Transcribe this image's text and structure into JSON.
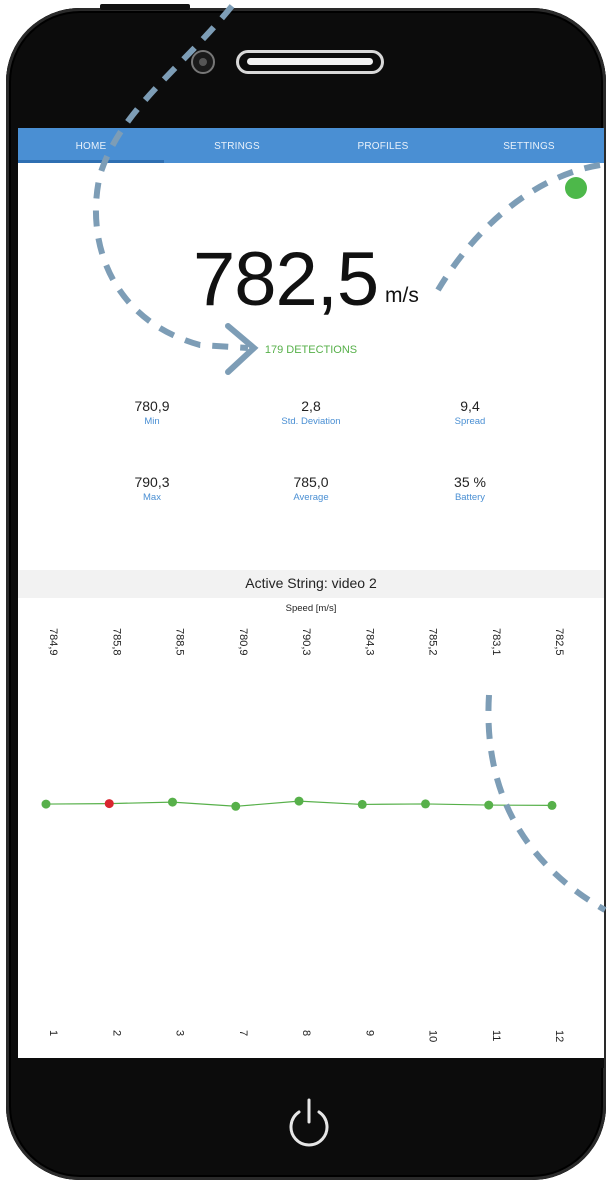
{
  "nav": {
    "tabs": [
      {
        "label": "HOME",
        "active": true
      },
      {
        "label": "STRINGS",
        "active": false
      },
      {
        "label": "PROFILES",
        "active": false
      },
      {
        "label": "SETTINGS",
        "active": false
      }
    ]
  },
  "main": {
    "speed_value": "782,5",
    "speed_unit": "m/s",
    "detections": "179 DETECTIONS"
  },
  "stats": [
    {
      "value": "780,9",
      "label": "Min"
    },
    {
      "value": "2,8",
      "label": "Std. Deviation"
    },
    {
      "value": "9,4",
      "label": "Spread"
    },
    {
      "value": "790,3",
      "label": "Max"
    },
    {
      "value": "785,0",
      "label": "Average"
    },
    {
      "value": "35 %",
      "label": "Battery"
    }
  ],
  "string": {
    "title": "Active String: video 2"
  },
  "chart_data": {
    "type": "line",
    "ylabel": "Speed [m/s]",
    "categories": [
      "1",
      "2",
      "3",
      "7",
      "8",
      "9",
      "10",
      "11",
      "12"
    ],
    "value_labels": [
      "784,9",
      "785,8",
      "788,5",
      "780,9",
      "790,3",
      "784,3",
      "785,2",
      "783,1",
      "782,5"
    ],
    "values": [
      784.9,
      785.8,
      788.5,
      780.9,
      790.3,
      784.3,
      785.2,
      783.1,
      782.5
    ],
    "highlight_index": 1,
    "colors": {
      "line": "#57b04a",
      "point": "#57b04a",
      "highlight": "#d9262f"
    }
  },
  "colors": {
    "nav": "#4a8fd3",
    "accent_green": "#57b04a",
    "label_blue": "#4a8fd3",
    "annotation": "#7d9db6"
  }
}
